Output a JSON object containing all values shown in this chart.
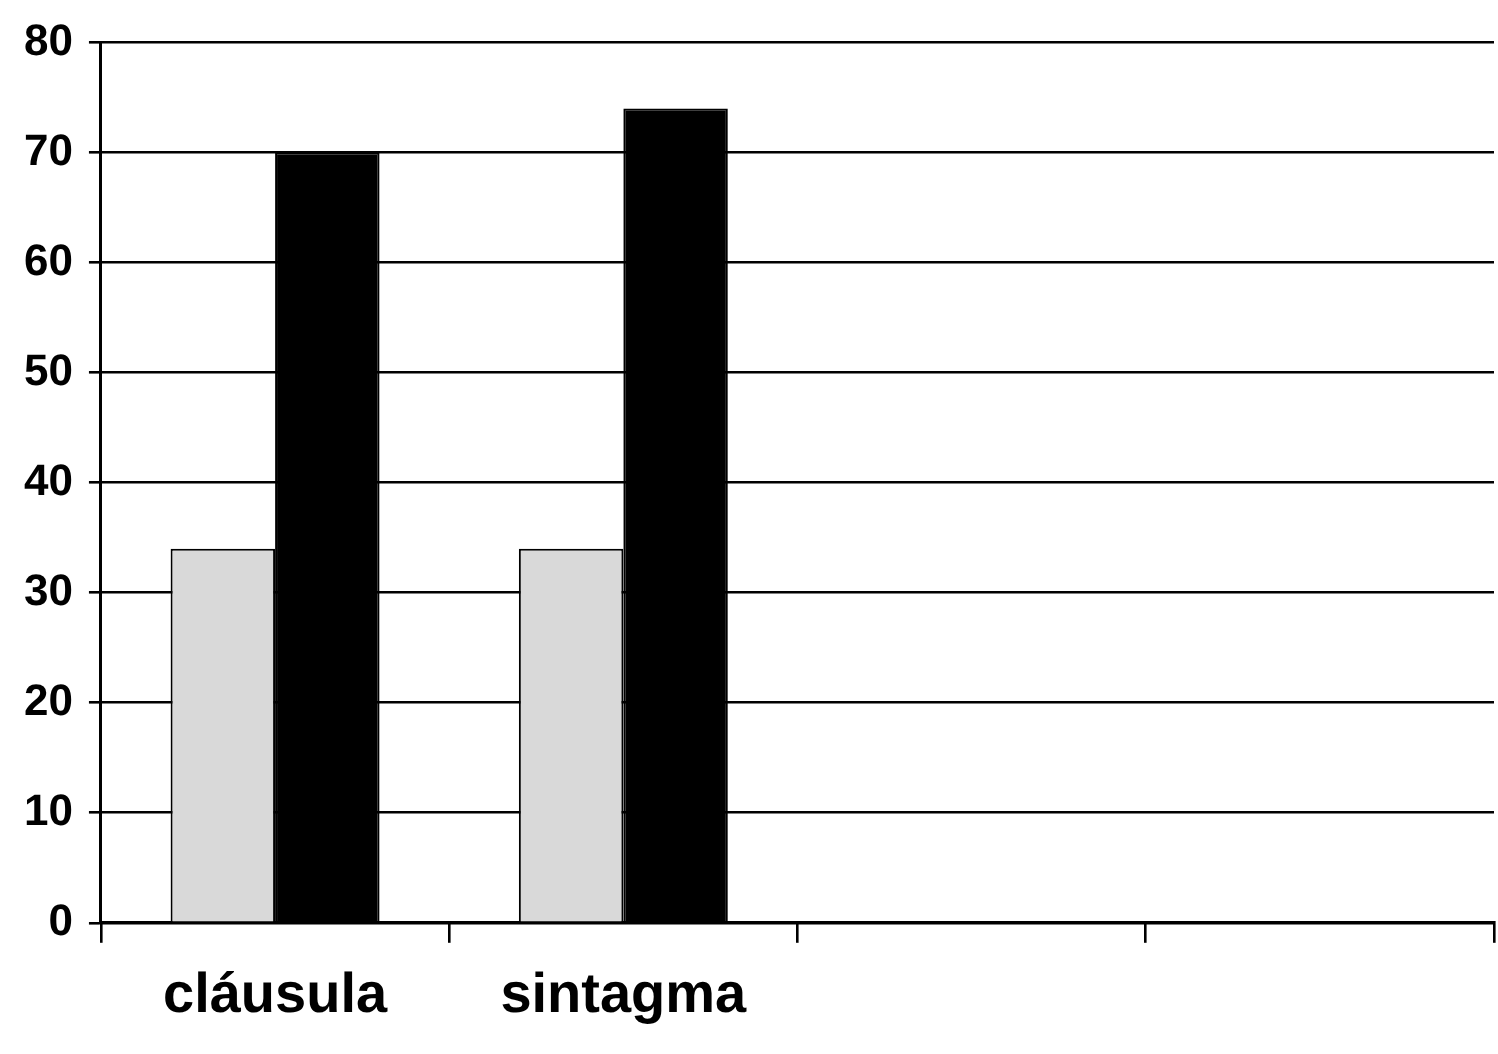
{
  "chart_data": {
    "type": "bar",
    "categories": [
      "cláusula",
      "sintagma",
      null,
      null
    ],
    "series": [
      {
        "color": "#d9d9d9",
        "values": [
          34,
          34,
          null,
          null
        ]
      },
      {
        "color": "#000000",
        "values": [
          70,
          74,
          null,
          null
        ]
      }
    ],
    "ylim": [
      0,
      80
    ],
    "yticks": [
      0,
      10,
      20,
      30,
      40,
      50,
      60,
      70,
      80
    ],
    "grid": "y",
    "legend": false
  }
}
